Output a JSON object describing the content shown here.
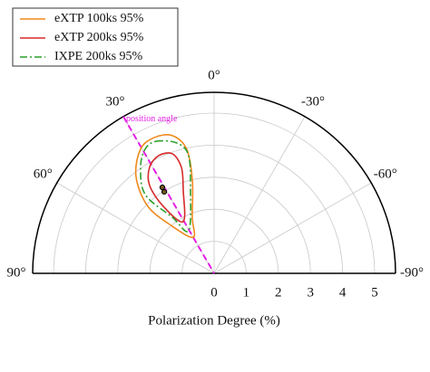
{
  "chart_data": {
    "type": "polar",
    "xlabel": "Polarization Degree (%)",
    "rlim": [
      0,
      5.65
    ],
    "rticks": [
      0,
      1,
      2,
      3,
      4,
      5
    ],
    "thetalim": [
      -90,
      90
    ],
    "thetaticks": [
      {
        "value": 0,
        "label": "0°"
      },
      {
        "value": 30,
        "label": "30°"
      },
      {
        "value": -30,
        "label": "-30°"
      },
      {
        "value": 60,
        "label": "60°"
      },
      {
        "value": -60,
        "label": "-60°"
      },
      {
        "value": 90,
        "label": "90°"
      },
      {
        "value": -90,
        "label": "-90°"
      }
    ],
    "grid": true,
    "legend": "upper left",
    "series": [
      {
        "name": "eXTP 100ks 95%",
        "color": "#f0891c",
        "dash": "solid",
        "theta": [
          23.7,
          16.8,
          12.4,
          13.2,
          21.2,
          29.9,
          41.5,
          44.6,
          38.8,
          30.6
        ],
        "r": [
          4.63,
          4.49,
          3.96,
          2.96,
          1.88,
          1.3,
          1.96,
          2.94,
          3.88,
          4.5
        ]
      },
      {
        "name": "eXTP 200ks 95%",
        "color": "#d62a2a",
        "dash": "solid",
        "theta": [
          25.1,
          19.2,
          17.1,
          20.3,
          30.8,
          37.1,
          36.2,
          31.3
        ],
        "r": [
          4.06,
          3.95,
          3.46,
          2.77,
          1.88,
          2.62,
          3.4,
          3.87
        ]
      },
      {
        "name": "IXPE 200ks 95%",
        "color": "#2ca02c",
        "dash": "dashdot",
        "theta": [
          23.7,
          15.9,
          12.2,
          15.8,
          30.8,
          36.6,
          41.1,
          34.7,
          29.0
        ],
        "r": [
          4.5,
          4.23,
          3.76,
          2.7,
          1.55,
          2.18,
          3.26,
          4.02,
          4.43
        ]
      }
    ],
    "points": {
      "color": "#6b5a1e",
      "theta": [
        31.0,
        31.4
      ],
      "r": [
        3.13,
        2.98
      ]
    },
    "annotation": {
      "text": "position angle",
      "theta": 30,
      "color": "#e61ee6"
    }
  }
}
